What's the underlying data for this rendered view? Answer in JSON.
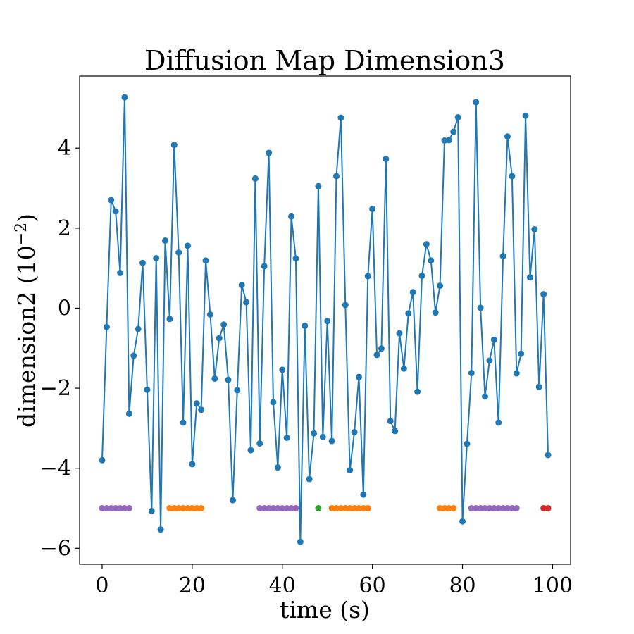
{
  "chart_data": {
    "type": "line",
    "title": "Diffusion Map Dimension3",
    "xlabel": "time (s)",
    "ylabel": "dimension2 (10",
    "ylabel_exponent": "−2",
    "ylabel_close": ")",
    "xlim": [
      -5,
      104
    ],
    "ylim": [
      -6.4,
      5.8
    ],
    "xticks": [
      0,
      20,
      40,
      60,
      80,
      100
    ],
    "xtick_labels": [
      "0",
      "20",
      "40",
      "60",
      "80",
      "100"
    ],
    "yticks": [
      -6,
      -4,
      -2,
      0,
      2,
      4
    ],
    "ytick_labels": [
      "−6",
      "−4",
      "−2",
      "0",
      "2",
      "4"
    ],
    "grid": false,
    "series": [
      {
        "color": "#1f77b4",
        "marker": "circle",
        "x": [
          0,
          1,
          2,
          3,
          4,
          5,
          6,
          7,
          8,
          9,
          10,
          11,
          12,
          13,
          14,
          15,
          16,
          17,
          18,
          19,
          20,
          21,
          22,
          23,
          24,
          25,
          26,
          27,
          28,
          29,
          30,
          31,
          32,
          33,
          34,
          35,
          36,
          37,
          38,
          39,
          40,
          41,
          42,
          43,
          44,
          45,
          46,
          47,
          48,
          49,
          50,
          51,
          52,
          53,
          54,
          55,
          56,
          57,
          58,
          59,
          60,
          61,
          62,
          63,
          64,
          65,
          66,
          67,
          68,
          69,
          70,
          71,
          72,
          73,
          74,
          75,
          76,
          77,
          78,
          79,
          80,
          81,
          82,
          83,
          84,
          85,
          86,
          87,
          88,
          89,
          90,
          91,
          92,
          93,
          94,
          95,
          96,
          97,
          98,
          99
        ],
        "y": [
          -3.8,
          -0.47,
          2.7,
          2.42,
          0.88,
          5.27,
          -2.64,
          -1.19,
          -0.52,
          1.13,
          -2.04,
          -5.07,
          1.25,
          -5.53,
          1.69,
          -0.27,
          4.08,
          1.39,
          -2.86,
          1.56,
          -3.9,
          -2.38,
          -2.54,
          1.19,
          -0.16,
          -1.76,
          -0.75,
          -0.41,
          -1.79,
          -4.8,
          -2.05,
          0.58,
          0.15,
          -3.55,
          3.24,
          -3.38,
          1.05,
          3.88,
          -2.35,
          -3.98,
          -1.54,
          -3.24,
          2.29,
          1.24,
          -5.84,
          -0.44,
          -4.27,
          -3.13,
          3.05,
          -3.22,
          -0.32,
          -3.32,
          3.3,
          4.76,
          0.08,
          -4.05,
          -3.1,
          -1.72,
          -4.66,
          0.8,
          2.48,
          -1.17,
          -1.01,
          3.73,
          -2.82,
          -3.07,
          -0.63,
          -1.51,
          -0.13,
          0.4,
          -2.09,
          0.81,
          1.6,
          1.19,
          -0.11,
          0.56,
          4.19,
          4.2,
          4.41,
          4.77,
          -5.33,
          -3.39,
          -1.62,
          5.15,
          0.01,
          -2.21,
          -1.31,
          -0.79,
          -2.86,
          1.3,
          4.29,
          3.3,
          -1.63,
          -1.14,
          4.81,
          0.77,
          1.97,
          -1.97,
          0.35,
          -3.67
        ]
      }
    ],
    "state_markers": {
      "y": -5,
      "groups": [
        {
          "color": "#9467bd",
          "x": [
            0,
            1,
            2,
            3,
            4,
            5,
            6
          ]
        },
        {
          "color": "#ff7f0e",
          "x": [
            15,
            16,
            17,
            18,
            19,
            20,
            21,
            22
          ]
        },
        {
          "color": "#9467bd",
          "x": [
            35,
            36,
            37,
            38,
            39,
            40,
            41,
            42,
            43
          ]
        },
        {
          "color": "#2ca02c",
          "x": [
            48
          ]
        },
        {
          "color": "#ff7f0e",
          "x": [
            51,
            52,
            53,
            54,
            55,
            56,
            57,
            58,
            59
          ]
        },
        {
          "color": "#ff7f0e",
          "x": [
            75,
            76,
            77,
            78
          ]
        },
        {
          "color": "#9467bd",
          "x": [
            82,
            83,
            84,
            85,
            86,
            87,
            88,
            89,
            90,
            91,
            92
          ]
        },
        {
          "color": "#d62728",
          "x": [
            98,
            99
          ]
        }
      ]
    }
  }
}
